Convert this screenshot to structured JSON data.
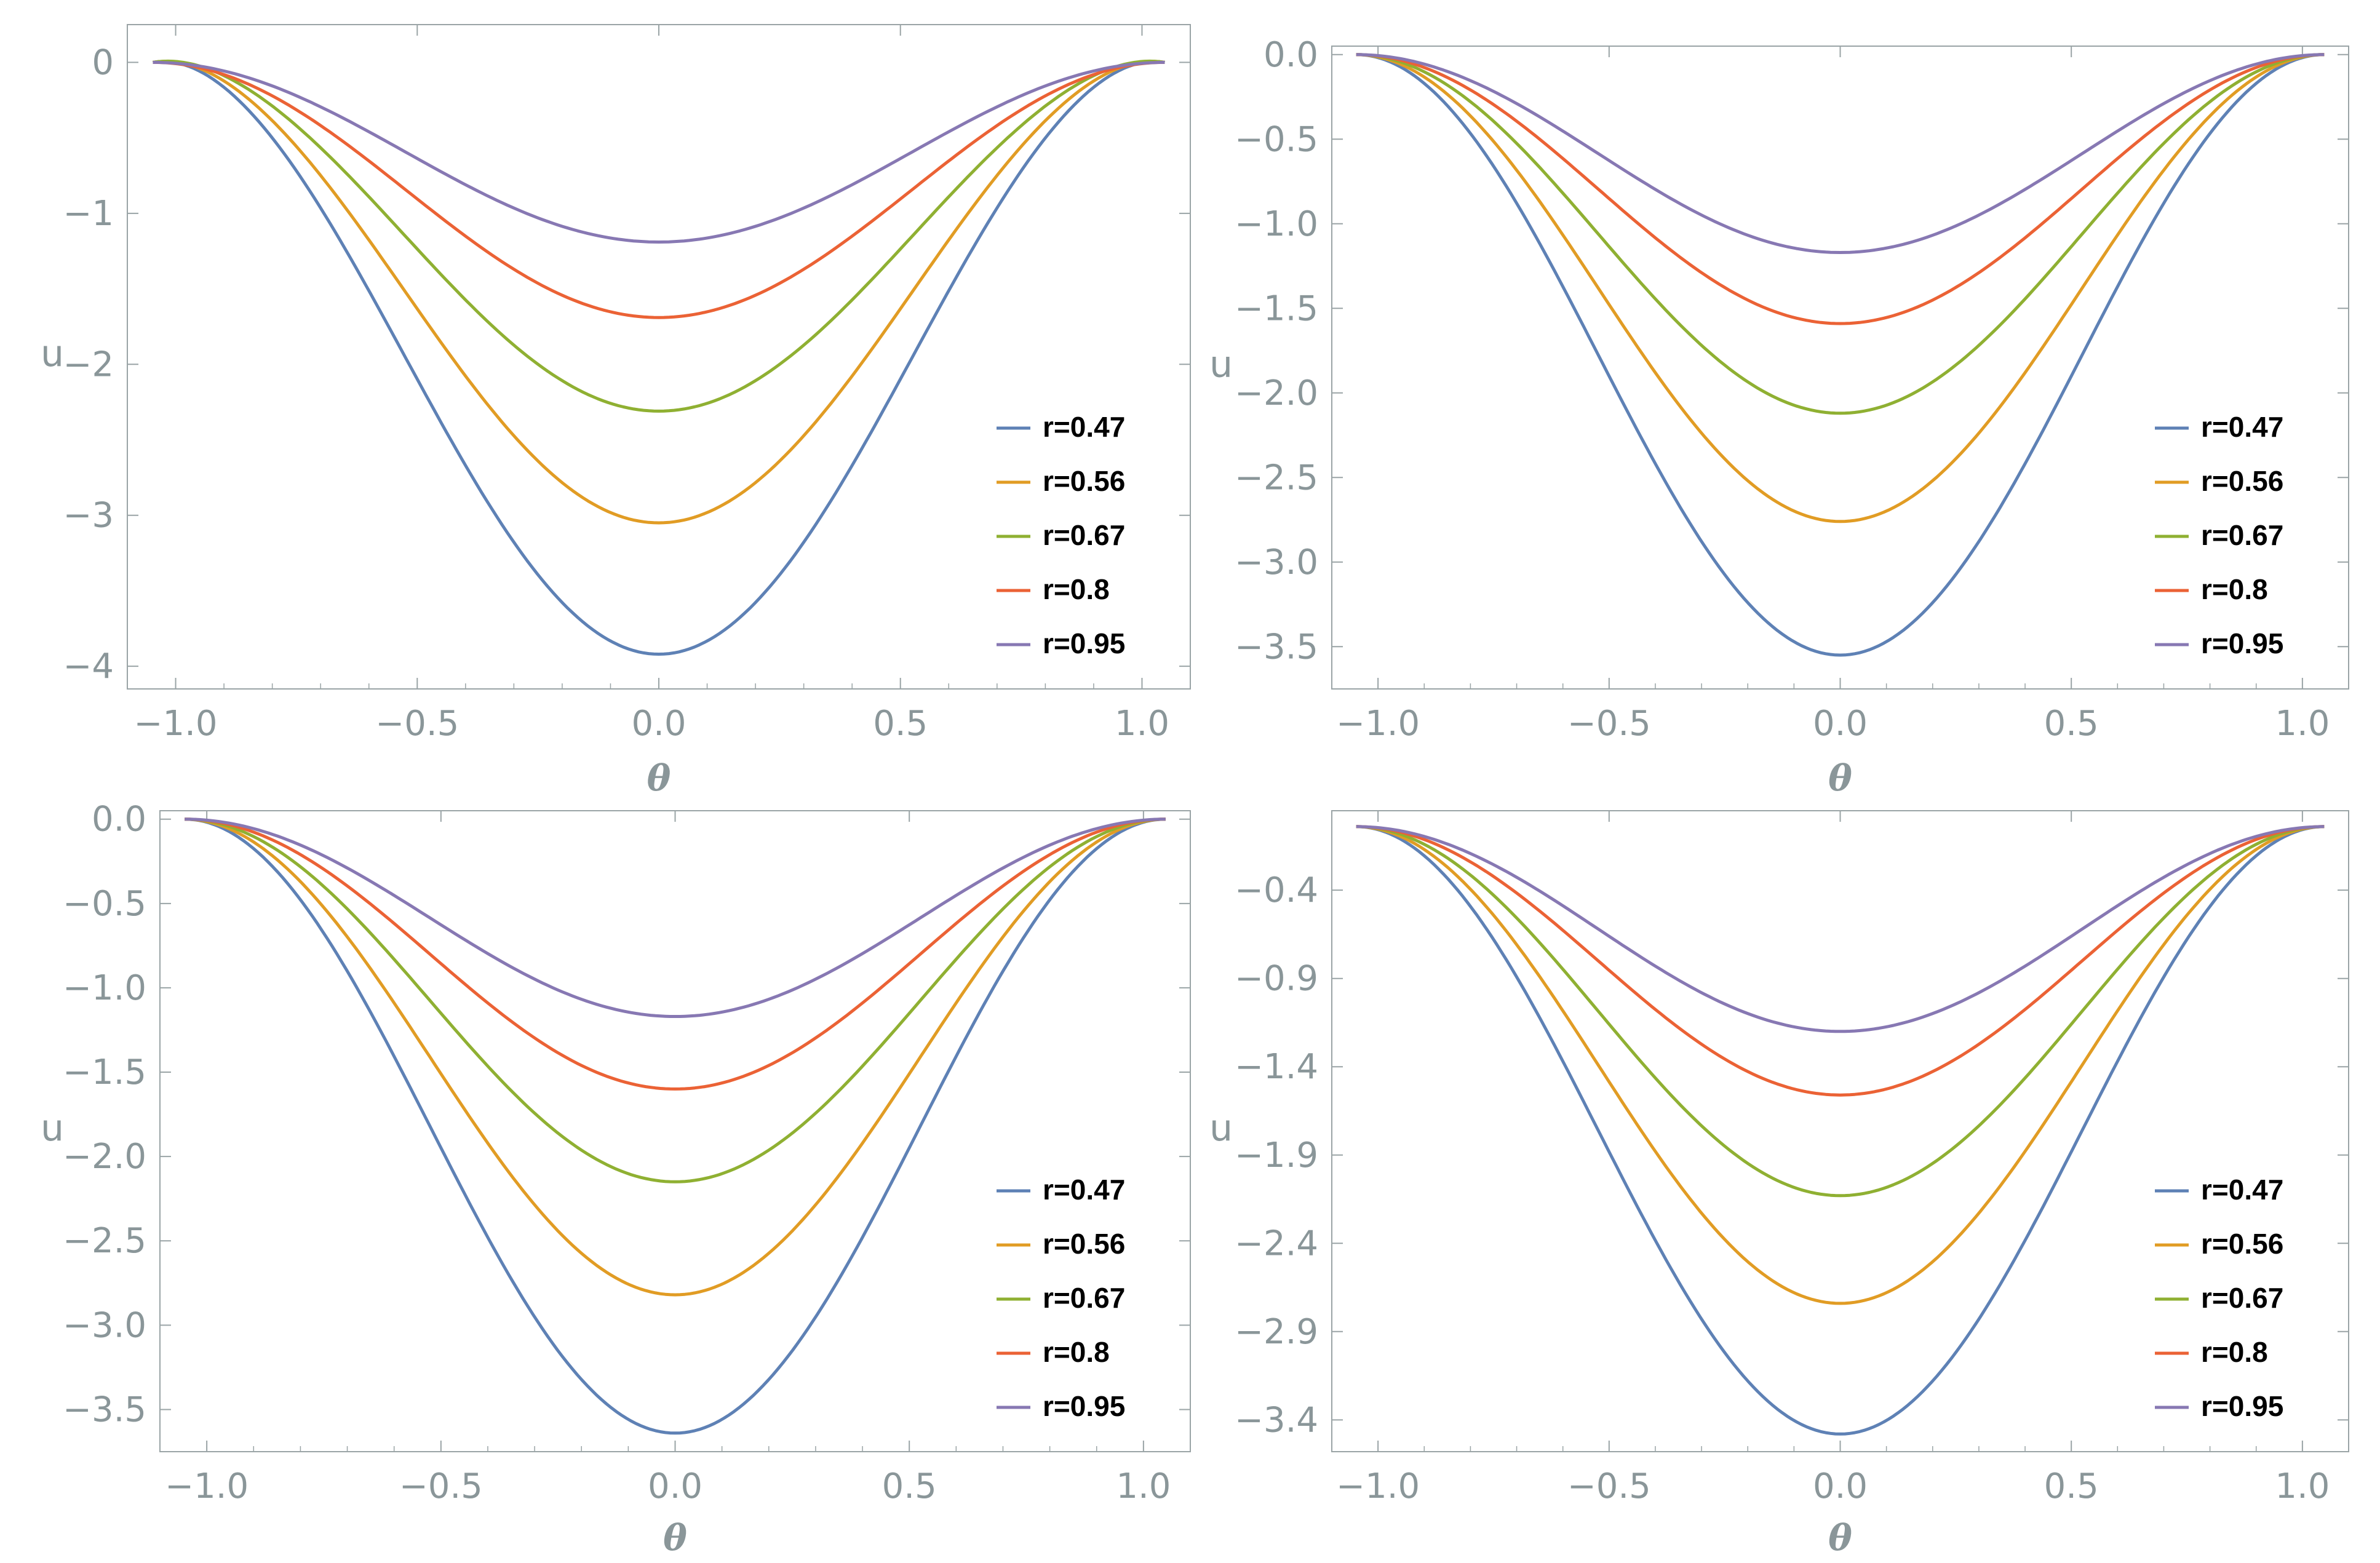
{
  "series_colors": [
    "#5e81b5",
    "#e19c24",
    "#8fb032",
    "#eb6235",
    "#8778b3"
  ],
  "chart_data": [
    {
      "type": "line",
      "title": "",
      "xlabel": "θ",
      "ylabel": "u",
      "xlim": [
        -1.1,
        1.1
      ],
      "ylim": [
        -4.15,
        0.25
      ],
      "xticks": [
        -1.0,
        -0.5,
        0.0,
        0.5,
        1.0
      ],
      "xtick_labels": [
        "−1.0",
        "−0.5",
        "0.0",
        "0.5",
        "1.0"
      ],
      "yticks": [
        0,
        -1,
        -2,
        -3,
        -4
      ],
      "ytick_labels": [
        "0",
        "−1",
        "−2",
        "−3",
        "−4"
      ],
      "legend_position": "bottom-right",
      "series": [
        {
          "name": "r=0.47",
          "theta_range": [
            -1.0472,
            1.0472
          ],
          "min": -3.92,
          "edge": 0.0,
          "shape": "bell",
          "bump": 0.03
        },
        {
          "name": "r=0.56",
          "theta_range": [
            -1.0472,
            1.0472
          ],
          "min": -3.05,
          "edge": 0.0,
          "shape": "bell",
          "bump": 0.03
        },
        {
          "name": "r=0.67",
          "theta_range": [
            -1.0472,
            1.0472
          ],
          "min": -2.31,
          "edge": 0.0,
          "shape": "bell",
          "bump": 0.03
        },
        {
          "name": "r=0.8",
          "theta_range": [
            -1.0472,
            1.0472
          ],
          "min": -1.69,
          "edge": 0.0,
          "shape": "bell",
          "bump": 0.0
        },
        {
          "name": "r=0.95",
          "theta_range": [
            -1.0472,
            1.0472
          ],
          "min": -1.19,
          "edge": 0.0,
          "shape": "bell",
          "bump": 0.0
        }
      ]
    },
    {
      "type": "line",
      "title": "",
      "xlabel": "θ",
      "ylabel": "u",
      "xlim": [
        -1.1,
        1.1
      ],
      "ylim": [
        -3.75,
        0.05
      ],
      "xticks": [
        -1.0,
        -0.5,
        0.0,
        0.5,
        1.0
      ],
      "xtick_labels": [
        "−1.0",
        "−0.5",
        "0.0",
        "0.5",
        "1.0"
      ],
      "yticks": [
        0.0,
        -0.5,
        -1.0,
        -1.5,
        -2.0,
        -2.5,
        -3.0,
        -3.5
      ],
      "ytick_labels": [
        "0.0",
        "−0.5",
        "−1.0",
        "−1.5",
        "−2.0",
        "−2.5",
        "−3.0",
        "−3.5"
      ],
      "legend_position": "bottom-right",
      "series": [
        {
          "name": "r=0.47",
          "theta_range": [
            -1.0472,
            1.0472
          ],
          "min": -3.55,
          "edge": 0.0,
          "shape": "bell",
          "bump": 0.0
        },
        {
          "name": "r=0.56",
          "theta_range": [
            -1.0472,
            1.0472
          ],
          "min": -2.76,
          "edge": 0.0,
          "shape": "bell",
          "bump": 0.0
        },
        {
          "name": "r=0.67",
          "theta_range": [
            -1.0472,
            1.0472
          ],
          "min": -2.12,
          "edge": 0.0,
          "shape": "bell",
          "bump": 0.0
        },
        {
          "name": "r=0.8",
          "theta_range": [
            -1.0472,
            1.0472
          ],
          "min": -1.59,
          "edge": 0.0,
          "shape": "bell",
          "bump": 0.0
        },
        {
          "name": "r=0.95",
          "theta_range": [
            -1.0472,
            1.0472
          ],
          "min": -1.17,
          "edge": 0.0,
          "shape": "bell",
          "bump": 0.0
        }
      ]
    },
    {
      "type": "line",
      "title": "",
      "xlabel": "θ",
      "ylabel": "u",
      "xlim": [
        -1.1,
        1.1
      ],
      "ylim": [
        -3.75,
        0.05
      ],
      "xticks": [
        -1.0,
        -0.5,
        0.0,
        0.5,
        1.0
      ],
      "xtick_labels": [
        "−1.0",
        "−0.5",
        "0.0",
        "0.5",
        "1.0"
      ],
      "yticks": [
        0.0,
        -0.5,
        -1.0,
        -1.5,
        -2.0,
        -2.5,
        -3.0,
        -3.5
      ],
      "ytick_labels": [
        "0.0",
        "−0.5",
        "−1.0",
        "−1.5",
        "−2.0",
        "−2.5",
        "−3.0",
        "−3.5"
      ],
      "legend_position": "bottom-right",
      "series": [
        {
          "name": "r=0.47",
          "theta_range": [
            -1.0472,
            1.0472
          ],
          "min": -3.64,
          "edge": 0.0,
          "shape": "bell",
          "bump": 0.0
        },
        {
          "name": "r=0.56",
          "theta_range": [
            -1.0472,
            1.0472
          ],
          "min": -2.82,
          "edge": 0.0,
          "shape": "bell",
          "bump": 0.0
        },
        {
          "name": "r=0.67",
          "theta_range": [
            -1.0472,
            1.0472
          ],
          "min": -2.15,
          "edge": 0.0,
          "shape": "bell",
          "bump": 0.0
        },
        {
          "name": "r=0.8",
          "theta_range": [
            -1.0472,
            1.0472
          ],
          "min": -1.6,
          "edge": 0.0,
          "shape": "bell",
          "bump": 0.0
        },
        {
          "name": "r=0.95",
          "theta_range": [
            -1.0472,
            1.0472
          ],
          "min": -1.17,
          "edge": 0.0,
          "shape": "bell",
          "bump": 0.0
        }
      ]
    },
    {
      "type": "line",
      "title": "",
      "xlabel": "θ",
      "ylabel": "u",
      "xlim": [
        -1.1,
        1.1
      ],
      "ylim": [
        -3.58,
        0.05
      ],
      "xticks": [
        -1.0,
        -0.5,
        0.0,
        0.5,
        1.0
      ],
      "xtick_labels": [
        "−1.0",
        "−0.5",
        "0.0",
        "0.5",
        "1.0"
      ],
      "yticks": [
        -0.4,
        -0.9,
        -1.4,
        -1.9,
        -2.4,
        -2.9,
        -3.4
      ],
      "ytick_labels": [
        "−0.4",
        "−0.9",
        "−1.4",
        "−1.9",
        "−2.4",
        "−2.9",
        "−3.4"
      ],
      "legend_position": "bottom-right",
      "series": [
        {
          "name": "r=0.47",
          "theta_range": [
            -1.0472,
            1.0472
          ],
          "min": -3.48,
          "edge": -0.04,
          "shape": "bell",
          "bump": 0.0
        },
        {
          "name": "r=0.56",
          "theta_range": [
            -1.0472,
            1.0472
          ],
          "min": -2.74,
          "edge": -0.04,
          "shape": "bell",
          "bump": 0.0
        },
        {
          "name": "r=0.67",
          "theta_range": [
            -1.0472,
            1.0472
          ],
          "min": -2.13,
          "edge": -0.04,
          "shape": "bell",
          "bump": 0.0
        },
        {
          "name": "r=0.8",
          "theta_range": [
            -1.0472,
            1.0472
          ],
          "min": -1.56,
          "edge": -0.04,
          "shape": "bell",
          "bump": 0.0
        },
        {
          "name": "r=0.95",
          "theta_range": [
            -1.0472,
            1.0472
          ],
          "min": -1.2,
          "edge": -0.04,
          "shape": "bell",
          "bump": 0.0
        }
      ]
    }
  ]
}
